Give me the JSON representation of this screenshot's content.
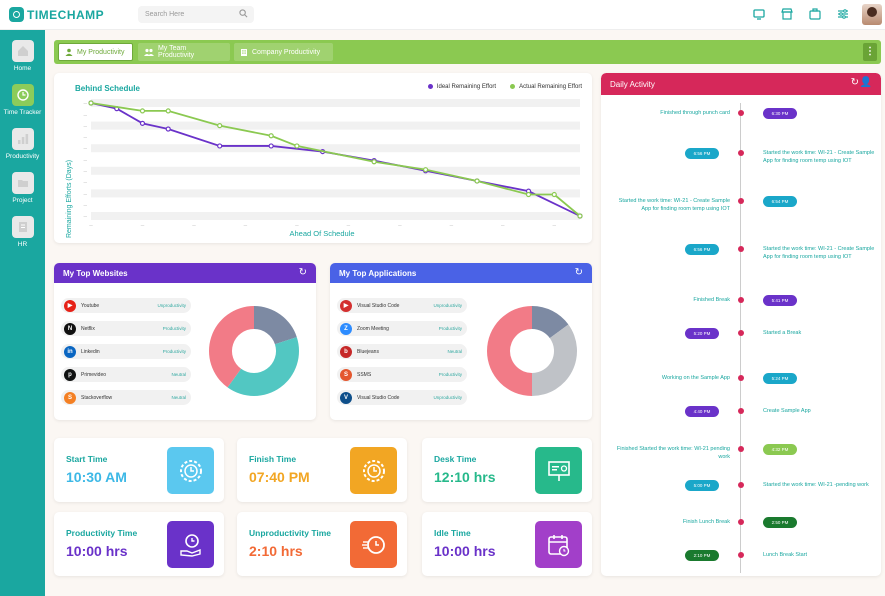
{
  "app": {
    "brand": "TIMECHAMP"
  },
  "search": {
    "placeholder": "Search Here"
  },
  "sidebar": {
    "items": [
      {
        "label": "Home",
        "icon": "home-icon"
      },
      {
        "label": "Time Tracker",
        "icon": "clock-icon"
      },
      {
        "label": "Productivity",
        "icon": "bar-chart-icon"
      },
      {
        "label": "Project",
        "icon": "folder-icon"
      },
      {
        "label": "HR",
        "icon": "document-icon"
      }
    ]
  },
  "tabs": [
    {
      "label": "My Productivity"
    },
    {
      "label": "My Team Productivity"
    },
    {
      "label": "Company Productivity"
    }
  ],
  "burndown": {
    "title": "Behind Schedule",
    "legend_ideal": "Ideal Remaining Effort",
    "legend_actual": "Actual Remaining Effort",
    "ylabel": "Remaining Efforts (Days)",
    "xlabel": "Ahead Of Schedule"
  },
  "chart_data": {
    "type": "line",
    "title": "Behind Schedule",
    "xlabel": "Ahead Of Schedule",
    "ylabel": "Remaining Efforts (Days)",
    "legend": "top-right",
    "colors": {
      "ideal": "#6a32c9",
      "actual": "#8bc951"
    },
    "x": [
      0,
      1,
      2,
      3,
      4,
      5,
      6,
      7,
      8,
      9,
      10,
      11,
      12,
      13,
      14,
      15,
      16,
      17,
      18,
      19
    ],
    "series": [
      {
        "name": "Ideal Remaining Effort",
        "values": [
          100,
          95,
          82,
          77,
          null,
          62,
          null,
          62,
          null,
          57,
          null,
          49,
          null,
          40,
          null,
          31,
          null,
          22,
          null,
          0
        ]
      },
      {
        "name": "Actual Remaining Effort",
        "values": [
          100,
          null,
          93,
          93,
          null,
          80,
          null,
          71,
          62,
          null,
          null,
          48,
          null,
          41,
          null,
          31,
          null,
          19,
          19,
          0
        ]
      }
    ]
  },
  "websites": {
    "title": "My Top Websites",
    "items": [
      {
        "name": "Youtube",
        "category": "Unproductivity",
        "color": "#e62117",
        "glyph": "▶"
      },
      {
        "name": "Netflix",
        "category": "Productivity",
        "color": "#111111",
        "glyph": "N"
      },
      {
        "name": "Linkedin",
        "category": "Productivity",
        "color": "#0a66c2",
        "glyph": "in"
      },
      {
        "name": "Primevideo",
        "category": "Neutral",
        "color": "#0f1111",
        "glyph": "p"
      },
      {
        "name": "Stackoverflow",
        "category": "Neutral",
        "color": "#f48024",
        "glyph": "S"
      }
    ],
    "donut": [
      {
        "value": 20,
        "color": "#7d8aa3"
      },
      {
        "value": 40,
        "color": "#52c7c2"
      },
      {
        "value": 40,
        "color": "#f27b87"
      }
    ]
  },
  "applications": {
    "title": "My Top Applications",
    "items": [
      {
        "name": "Visual Studio Code",
        "category": "Unproductivity",
        "color": "#d32f2f",
        "glyph": "▶"
      },
      {
        "name": "Zoom Meeting",
        "category": "Productivity",
        "color": "#2d8cff",
        "glyph": "Z"
      },
      {
        "name": "Bluejeans",
        "category": "Neutral",
        "color": "#c62828",
        "glyph": "b"
      },
      {
        "name": "SSMS",
        "category": "Productivity",
        "color": "#e4572e",
        "glyph": "S"
      },
      {
        "name": "Visual Studio Code",
        "category": "Unproductivity",
        "color": "#0e4f8a",
        "glyph": "V"
      }
    ],
    "donut": [
      {
        "value": 15,
        "color": "#7d8aa3"
      },
      {
        "value": 35,
        "color": "#bfc2c7"
      },
      {
        "value": 50,
        "color": "#f27b87"
      }
    ]
  },
  "stats": [
    {
      "label": "Start Time",
      "value": "10:30 AM",
      "color": "#3cb8e6",
      "icon": "gear-clock-icon"
    },
    {
      "label": "Finish Time",
      "value": "07:40 PM",
      "color": "#f2a623",
      "icon": "gear-clock-icon"
    },
    {
      "label": "Desk Time",
      "value": "12:10 hrs",
      "color": "#27b98b",
      "icon": "presentation-icon"
    },
    {
      "label": "Productivity Time",
      "value": "10:00 hrs",
      "color": "#6a32c9",
      "icon": "hand-clock-icon"
    },
    {
      "label": "Unproductivity Time",
      "value": "2:10 hrs",
      "color": "#f26a36",
      "icon": "fast-clock-icon"
    },
    {
      "label": "Idle Time",
      "value": "10:00 hrs",
      "color": "#a23fc9",
      "icon": "calendar-clock-icon"
    }
  ],
  "daily": {
    "title": "Daily Activity",
    "events": [
      {
        "side": "left",
        "text": "Finished through punch card",
        "time": "6:30 PM",
        "badge": "#6a32c9"
      },
      {
        "side": "right",
        "text": "Started the work time: WI-21 - Create Sample App for finding room temp using IOT",
        "time": "6:56 PM",
        "badge": "#1aa7c9"
      },
      {
        "side": "left",
        "text": "Started the work time: WI-21 - Create Sample App for finding room temp using IOT",
        "time": "6:54 PM",
        "badge": "#1aa7c9"
      },
      {
        "side": "right",
        "text": "Started the work time: WI-21 - Create Sample App for finding room temp using IOT",
        "time": "6:56 PM",
        "badge": "#1aa7c9"
      },
      {
        "side": "left",
        "text": "Finished Break",
        "time": "5:41 PM",
        "badge": "#6a32c9"
      },
      {
        "side": "right",
        "text": "Started a Break",
        "time": "5:20 PM",
        "badge": "#6a32c9"
      },
      {
        "side": "left",
        "text": "Working on the Sample App",
        "time": "5:24 PM",
        "badge": "#1aa7c9"
      },
      {
        "side": "right",
        "text": "Create Sample App",
        "time": "4:40 PM",
        "badge": "#6a32c9"
      },
      {
        "side": "left",
        "text": "Finished Started the work time: WI-21 pending work",
        "time": "4:32 PM",
        "badge": "#8bc951"
      },
      {
        "side": "right",
        "text": "Started the work time: WI-21 -pending work",
        "time": "5:00 PM",
        "badge": "#1aa7c9"
      },
      {
        "side": "left",
        "text": "Finish Lunch Break",
        "time": "2:50 PM",
        "badge": "#1a7a2e"
      },
      {
        "side": "right",
        "text": "Lunch Break Start",
        "time": "2:10 PM",
        "badge": "#1a7a2e"
      }
    ]
  }
}
